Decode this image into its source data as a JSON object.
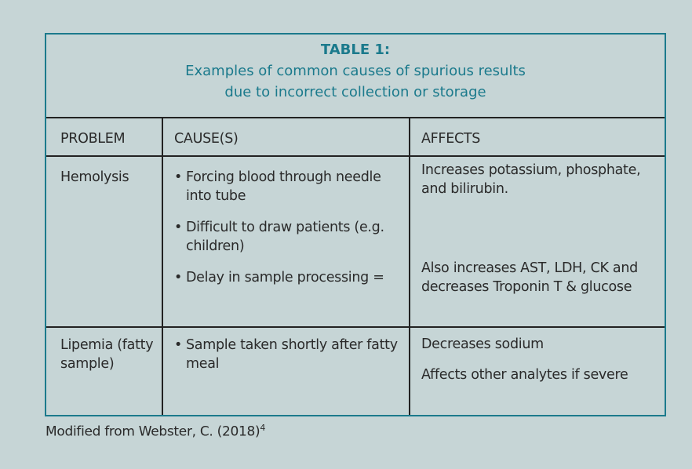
{
  "table": {
    "title": "TABLE 1:",
    "subtitle_line1": "Examples of common causes of spurious results",
    "subtitle_line2": "due to incorrect collection or storage",
    "headers": [
      "PROBLEM",
      "CAUSE(S)",
      "AFFECTS"
    ],
    "rows": [
      {
        "problem": "Hemolysis",
        "causes": [
          "Forcing blood through needle into tube",
          "Difficult to draw patients (e.g. children)",
          "Delay in sample processing ="
        ],
        "affects": [
          "Increases potassium, phosphate, and bilirubin.",
          "Also increases AST, LDH, CK and decreases Troponin T & glucose"
        ]
      },
      {
        "problem": "Lipemia (fatty sample)",
        "causes": [
          "Sample taken shortly after fatty meal"
        ],
        "affects": [
          "Decreases sodium",
          "Affects other analytes if severe"
        ]
      }
    ]
  },
  "footer": {
    "text": "Modified from Webster, C. (2018)",
    "superscript": "4"
  }
}
